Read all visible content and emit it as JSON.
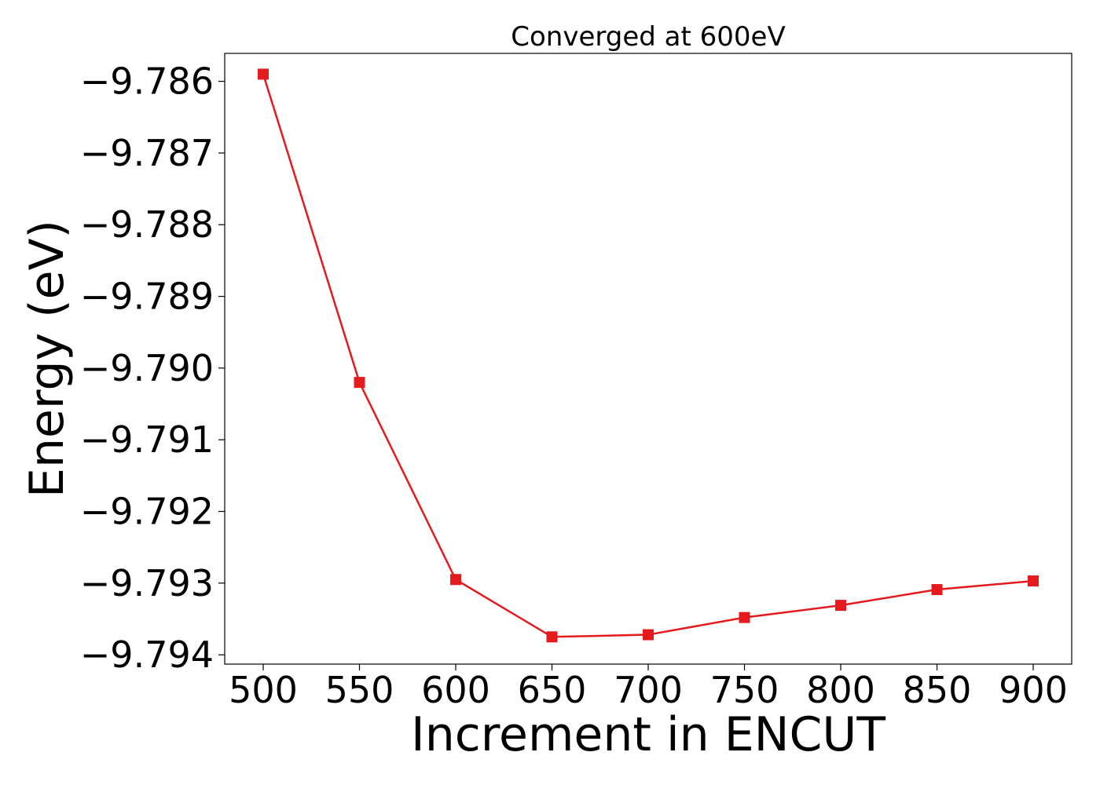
{
  "chart_data": {
    "type": "line",
    "title": "Converged at 600eV",
    "xlabel": "Increment in ENCUT",
    "ylabel": "Energy (eV)",
    "x": [
      500,
      550,
      600,
      650,
      700,
      750,
      800,
      850,
      900
    ],
    "series": [
      {
        "values": [
          -9.7859,
          -9.7902,
          -9.79295,
          -9.79375,
          -9.79372,
          -9.79348,
          -9.79331,
          -9.79309,
          -9.79297
        ]
      }
    ],
    "xlim": [
      480,
      920
    ],
    "ylim": [
      -9.79413,
      -9.78561
    ],
    "x_ticks": [
      500,
      550,
      600,
      650,
      700,
      750,
      800,
      850,
      900
    ],
    "x_tick_labels": [
      "500",
      "550",
      "600",
      "650",
      "700",
      "750",
      "800",
      "850",
      "900"
    ],
    "y_ticks": [
      -9.786,
      -9.787,
      -9.788,
      -9.789,
      -9.79,
      -9.791,
      -9.792,
      -9.793,
      -9.794
    ],
    "y_tick_labels": [
      "−9.786",
      "−9.787",
      "−9.788",
      "−9.789",
      "−9.790",
      "−9.791",
      "−9.792",
      "−9.793",
      "−9.794"
    ],
    "grid": false,
    "colors": {
      "line": "#e41a1c",
      "marker": "#e41a1c",
      "axes": "#000000"
    },
    "marker": "square"
  }
}
